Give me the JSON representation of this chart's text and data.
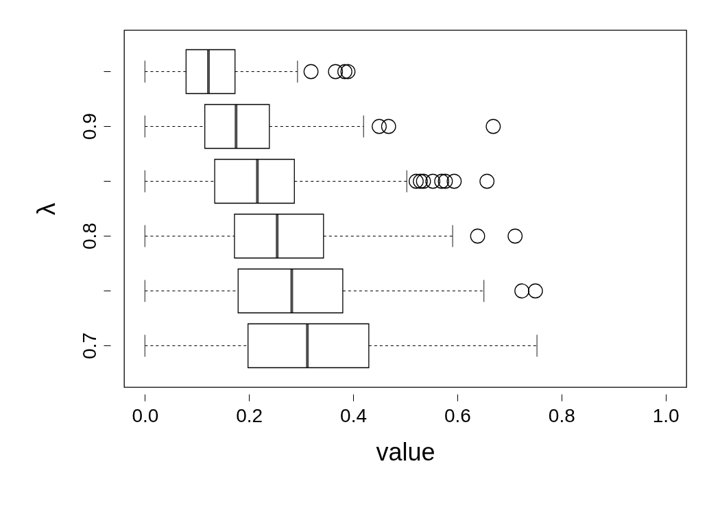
{
  "chart_data": {
    "type": "box",
    "orientation": "horizontal",
    "xlabel": "value",
    "ylabel": "λ",
    "categories": [
      null,
      "0.9",
      null,
      "0.8",
      null,
      "0.7"
    ],
    "boxes": [
      {
        "low": 0,
        "q1": 0.079,
        "median": 0.122,
        "q3": 0.173,
        "high": 0.293,
        "outliers": [
          0.319,
          0.366,
          0.384,
          0.39
        ]
      },
      {
        "low": 0,
        "q1": 0.115,
        "median": 0.175,
        "q3": 0.239,
        "high": 0.42,
        "outliers": [
          0.45,
          0.468,
          0.669
        ]
      },
      {
        "low": 0,
        "q1": 0.134,
        "median": 0.216,
        "q3": 0.287,
        "high": 0.503,
        "outliers": [
          0.521,
          0.529,
          0.535,
          0.553,
          0.57,
          0.577,
          0.594,
          0.657
        ]
      },
      {
        "low": 0,
        "q1": 0.172,
        "median": 0.254,
        "q3": 0.343,
        "high": 0.591,
        "outliers": [
          0.639,
          0.711
        ]
      },
      {
        "low": 0,
        "q1": 0.179,
        "median": 0.282,
        "q3": 0.38,
        "high": 0.651,
        "outliers": [
          0.724,
          0.75
        ]
      },
      {
        "low": 0,
        "q1": 0.198,
        "median": 0.312,
        "q3": 0.43,
        "high": 0.753
      }
    ],
    "xlim": [
      -0.04,
      1.04
    ],
    "xticks": [
      {
        "value": 0,
        "label": "0.0"
      },
      0.2,
      0.4,
      0.6,
      0.8,
      {
        "value": 1,
        "label": "1.0"
      }
    ]
  }
}
